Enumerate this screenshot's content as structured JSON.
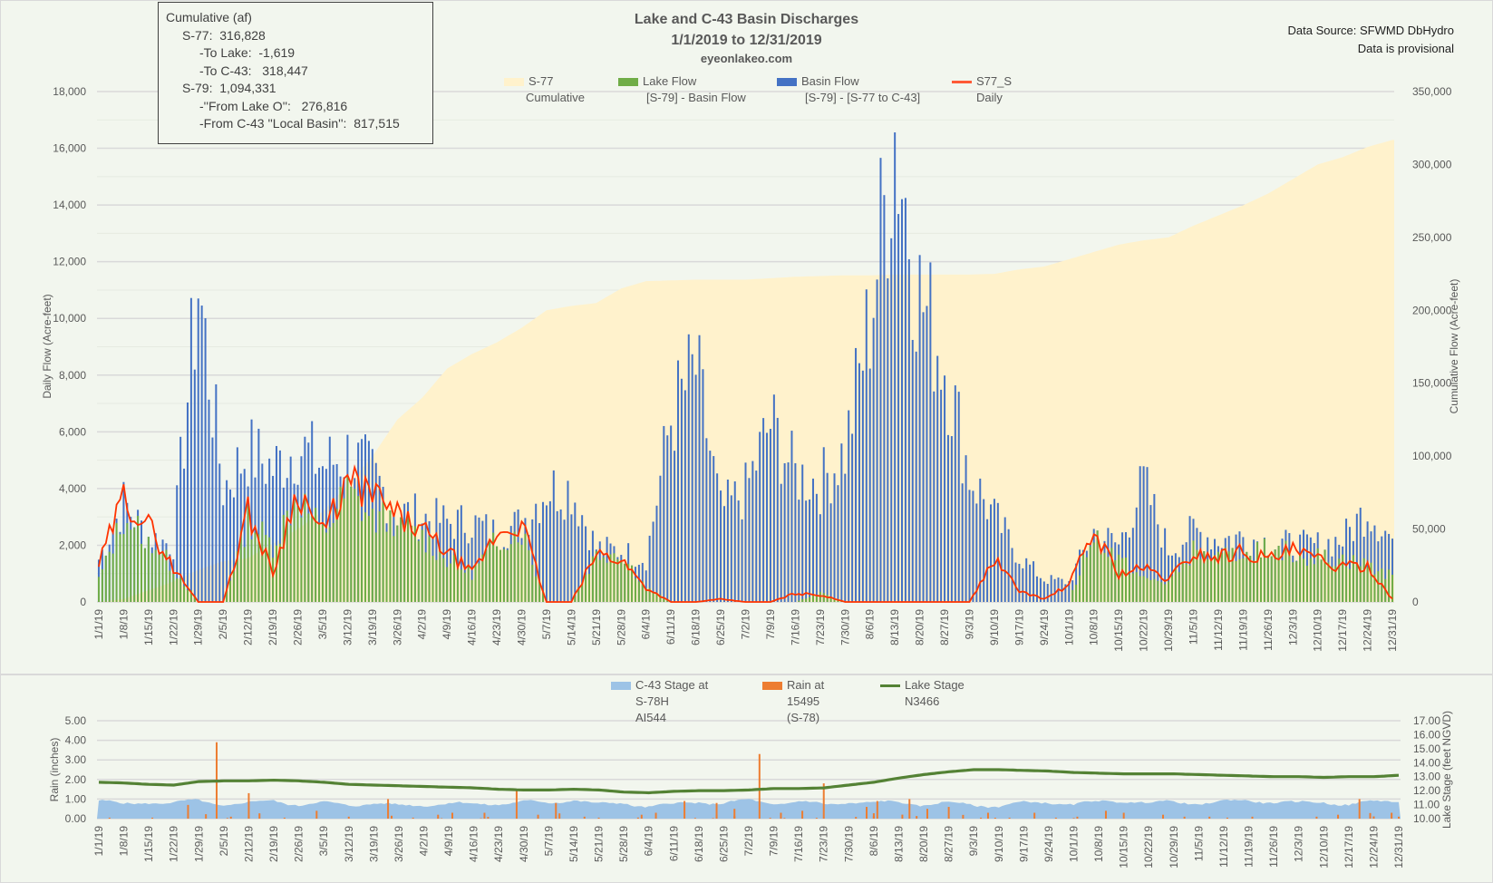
{
  "header": {
    "title": "Lake and C-43 Basin Discharges",
    "date_range": "1/1/2019 to 12/31/2019",
    "site": "eyeonlakeo.com",
    "source_line1": "Data Source: SFWMD DbHydro",
    "source_line2": "Data is provisional"
  },
  "infobox": {
    "heading": "Cumulative (af)",
    "s77": "S-77:  316,828",
    "to_lake": "-To Lake:  -1,619",
    "to_c43": "-To C-43:   318,447",
    "s79": "S-79:  1,094,331",
    "from_lake": "-''From Lake O'':   276,816",
    "from_basin": "-From C-43 ''Local Basin'':  817,515"
  },
  "colors": {
    "background": "#f2f6ee",
    "cumulative": "#fff2cc",
    "lake_flow": "#70ad47",
    "basin_flow": "#4472c4",
    "s77_daily": "#ff3300",
    "c43_stage": "#9dc3e6",
    "rain": "#ed7d31",
    "lake_stage": "#548235",
    "grid": "#d9d9d9",
    "axis_text": "#595959"
  },
  "x_tick_labels": [
    "1/1/19",
    "1/8/19",
    "1/15/19",
    "1/22/19",
    "1/29/19",
    "2/5/19",
    "2/12/19",
    "2/19/19",
    "2/26/19",
    "3/5/19",
    "3/12/19",
    "3/19/19",
    "3/26/19",
    "4/2/19",
    "4/9/19",
    "4/16/19",
    "4/23/19",
    "4/30/19",
    "5/7/19",
    "5/14/19",
    "5/21/19",
    "5/28/19",
    "6/4/19",
    "6/11/19",
    "6/18/19",
    "6/25/19",
    "7/2/19",
    "7/9/19",
    "7/16/19",
    "7/23/19",
    "7/30/19",
    "8/6/19",
    "8/13/19",
    "8/20/19",
    "8/27/19",
    "9/3/19",
    "9/10/19",
    "9/17/19",
    "9/24/19",
    "10/1/19",
    "10/8/19",
    "10/15/19",
    "10/22/19",
    "10/29/19",
    "11/5/19",
    "11/12/19",
    "11/19/19",
    "11/26/19",
    "12/3/19",
    "12/10/19",
    "12/17/19",
    "12/24/19",
    "12/31/19"
  ],
  "chart_data": [
    {
      "type": "bar",
      "title": "Lake and C-43 Basin Discharges",
      "subtitle": "1/1/2019 to 12/31/2019",
      "xlabel": "",
      "ylabel": "Daily Flow (Acre-feet)",
      "y2label": "Cumulative Flow (Acre-feet)",
      "ylim": [
        0,
        18000
      ],
      "y2lim": [
        0,
        350000
      ],
      "y_ticks": [
        "0",
        "2,000",
        "4,000",
        "6,000",
        "8,000",
        "10,000",
        "12,000",
        "14,000",
        "16,000",
        "18,000"
      ],
      "y2_ticks": [
        "0",
        "50,000",
        "100,000",
        "150,000",
        "200,000",
        "250,000",
        "300,000",
        "350,000"
      ],
      "grid": true,
      "legend_position": "top",
      "legend": [
        {
          "line1": "S-77",
          "line2": "Cumulative"
        },
        {
          "line1": "Lake Flow",
          "line2": "[S-79] - Basin Flow"
        },
        {
          "line1": "Basin Flow",
          "line2": "[S-79] - [S-77 to C-43]"
        },
        {
          "line1": "S77_S",
          "line2": "Daily"
        }
      ],
      "x_note": "daily values Jan 1 - Dec 31 2019, listed at weekly resolution (53 points, one per tick label)",
      "series": [
        {
          "name": "S-77 Cumulative",
          "type": "area",
          "axis": "right",
          "values": [
            0,
            2000,
            8000,
            14000,
            22000,
            28000,
            30000,
            40000,
            50000,
            62000,
            80000,
            100000,
            125000,
            140000,
            160000,
            170000,
            178000,
            188000,
            200000,
            203000,
            205000,
            215000,
            220000,
            220500,
            221000,
            221000,
            221000,
            222000,
            223000,
            223500,
            224000,
            224000,
            224500,
            224500,
            224500,
            224500,
            225000,
            228000,
            230000,
            235000,
            240000,
            245000,
            248000,
            250000,
            258000,
            265000,
            272000,
            280000,
            290000,
            300000,
            305000,
            312000,
            316828
          ]
        },
        {
          "name": "S-79 Total (Lake Flow + Basin Flow)",
          "type": "bar",
          "axis": "left",
          "values": [
            1500,
            3500,
            2300,
            2000,
            11200,
            4000,
            5300,
            4700,
            5500,
            4800,
            5200,
            4500,
            3200,
            3000,
            2800,
            2800,
            2400,
            2800,
            4000,
            4000,
            1900,
            1800,
            1500,
            6500,
            8200,
            3200,
            3900,
            6300,
            4500,
            4200,
            5300,
            10000,
            16700,
            10800,
            8500,
            4500,
            3000,
            1600,
            800,
            700,
            2500,
            2000,
            4200,
            1800,
            2500,
            2200,
            2300,
            2100,
            2000,
            2000,
            2200,
            3300,
            2200
          ]
        },
        {
          "name": "Lake Flow",
          "type": "bar",
          "axis": "left",
          "values": [
            800,
            3000,
            2300,
            1200,
            0,
            0,
            2900,
            2000,
            3800,
            2400,
            3900,
            2900,
            3000,
            2300,
            1500,
            1000,
            2200,
            2500,
            0,
            0,
            1700,
            1800,
            500,
            0,
            0,
            0,
            0,
            0,
            0,
            300,
            0,
            0,
            0,
            0,
            0,
            0,
            0,
            0,
            0,
            0,
            2500,
            1500,
            800,
            700,
            1800,
            1500,
            1800,
            2000,
            1700,
            1600,
            1500,
            1300,
            900
          ]
        },
        {
          "name": "S77_S Daily",
          "type": "line",
          "axis": "left",
          "values": [
            1300,
            3700,
            2700,
            1200,
            0,
            0,
            3200,
            1000,
            4000,
            2400,
            4200,
            3800,
            3000,
            2500,
            1800,
            1000,
            2400,
            2800,
            0,
            0,
            1700,
            1500,
            500,
            0,
            0,
            100,
            0,
            0,
            300,
            250,
            0,
            0,
            0,
            0,
            0,
            0,
            1500,
            400,
            100,
            600,
            2500,
            1000,
            1200,
            800,
            1700,
            1600,
            1800,
            1500,
            1800,
            1500,
            1200,
            1300,
            100
          ]
        }
      ]
    },
    {
      "type": "line",
      "xlabel": "",
      "ylabel": "Rain (inches)",
      "y2label": "Lake Stage (feet NGVD)",
      "ylim": [
        0,
        5
      ],
      "y2lim": [
        10,
        17
      ],
      "y_ticks": [
        "0.00",
        "1.00",
        "2.00",
        "3.00",
        "4.00",
        "5.00"
      ],
      "y2_ticks": [
        "10.00",
        "11.00",
        "12.00",
        "13.00",
        "14.00",
        "15.00",
        "16.00",
        "17.00"
      ],
      "grid": true,
      "legend_position": "top",
      "legend": [
        {
          "line1": "C-43 Stage at",
          "line2": "S-78H",
          "line3": "AI544"
        },
        {
          "line1": "Rain at",
          "line2": "15495",
          "line3": "(S-78)"
        },
        {
          "line1": "Lake Stage",
          "line2": "N3466"
        }
      ],
      "series": [
        {
          "name": "C-43 Stage (ft)",
          "type": "area",
          "axis": "right",
          "values": [
            11.3,
            11.0,
            11.2,
            11.1,
            11.3,
            11.0,
            11.1,
            11.3,
            11.0,
            11.1,
            11.0,
            11.1,
            10.9,
            11.0,
            11.1,
            11.0,
            11.1,
            11.2,
            11.1,
            11.4,
            11.0,
            11.1,
            10.9,
            11.0,
            11.2,
            11.1,
            11.3,
            11.1,
            11.2,
            11.0,
            11.2,
            11.1,
            11.2,
            11.0,
            11.1,
            11.0,
            10.9,
            11.1,
            11.2,
            11.0,
            11.2,
            11.3,
            11.1,
            11.2,
            11.1,
            11.2,
            11.3,
            11.2,
            11.1,
            11.2,
            11.0,
            11.2,
            11.3
          ]
        },
        {
          "name": "Rain (in)",
          "type": "bar",
          "axis": "left",
          "values": [
            0.05,
            0.0,
            0.05,
            0.7,
            3.9,
            0.1,
            1.3,
            0.05,
            0.4,
            0.0,
            0.1,
            1.0,
            0.05,
            0.2,
            0.3,
            0.3,
            1.5,
            0.2,
            0.8,
            0.1,
            0.05,
            0.2,
            0.3,
            0.9,
            0.8,
            0.5,
            3.3,
            0.3,
            0.4,
            1.8,
            0.6,
            0.9,
            1.0,
            0.5,
            0.6,
            0.3,
            0.05,
            0.3,
            0.05,
            0.1,
            0.4,
            0.3,
            0.2,
            0.1,
            0.1,
            0.05,
            0.1,
            0.0,
            0.1,
            0.2,
            1.0,
            0.3,
            0.1
          ]
        },
        {
          "name": "Lake Stage (ft)",
          "type": "line",
          "axis": "right",
          "values": [
            12.6,
            12.55,
            12.45,
            12.4,
            12.65,
            12.7,
            12.7,
            12.75,
            12.7,
            12.6,
            12.45,
            12.4,
            12.35,
            12.3,
            12.25,
            12.2,
            12.1,
            12.05,
            12.05,
            12.1,
            12.05,
            11.9,
            11.85,
            11.95,
            12.0,
            12.0,
            12.05,
            12.15,
            12.15,
            12.2,
            12.4,
            12.6,
            12.9,
            13.15,
            13.35,
            13.5,
            13.5,
            13.45,
            13.4,
            13.3,
            13.25,
            13.2,
            13.2,
            13.2,
            13.15,
            13.1,
            13.05,
            13.0,
            13.0,
            12.95,
            13.0,
            13.0,
            13.1
          ]
        }
      ]
    }
  ]
}
